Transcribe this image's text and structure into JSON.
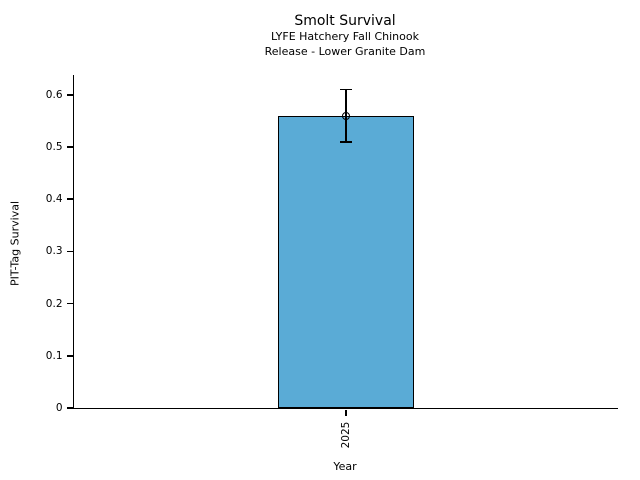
{
  "figure": {
    "background": "#ffffff",
    "text_color": "#000000"
  },
  "chart_data": {
    "type": "bar",
    "title": "Smolt Survival",
    "subtitle1": "LYFE Hatchery Fall Chinook",
    "subtitle2": "Release - Lower Granite Dam",
    "xlabel": "Year",
    "ylabel": "PIT-Tag Survival",
    "categories": [
      "2025"
    ],
    "values": [
      0.56
    ],
    "error_low": [
      0.51
    ],
    "error_high": [
      0.61
    ],
    "yticks": [
      {
        "value": 0.0,
        "label": "0"
      },
      {
        "value": 0.1,
        "label": "0.1"
      },
      {
        "value": 0.2,
        "label": "0.2"
      },
      {
        "value": 0.3,
        "label": "0.3"
      },
      {
        "value": 0.4,
        "label": "0.4"
      },
      {
        "value": 0.5,
        "label": "0.5"
      },
      {
        "value": 0.6,
        "label": "0.6"
      }
    ],
    "ylim": [
      0,
      0.638
    ],
    "grid": false,
    "legend_position": "none",
    "marker": "open-circle",
    "bar_color": "#5aabd6",
    "edge_color": "#000000",
    "spines": [
      "left",
      "bottom"
    ]
  }
}
